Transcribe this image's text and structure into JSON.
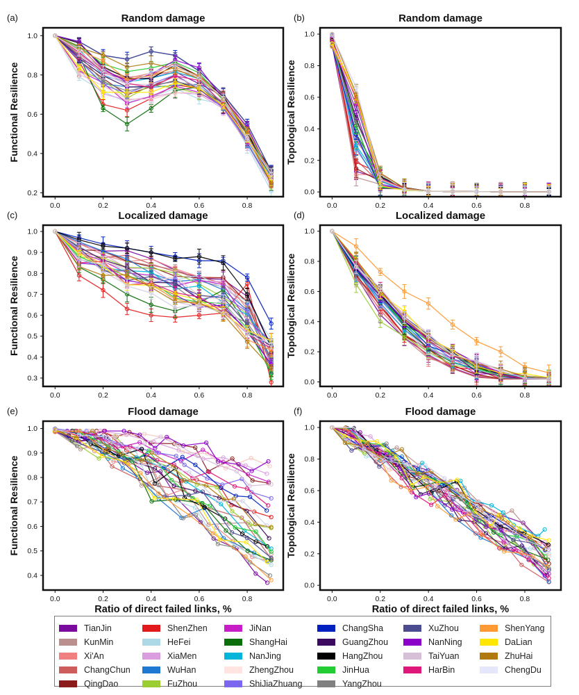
{
  "cities": [
    {
      "name": "TianJin",
      "color": "#7b0a9e"
    },
    {
      "name": "KunMin",
      "color": "#bc8f8f"
    },
    {
      "name": "Xi'An",
      "color": "#f08080"
    },
    {
      "name": "ChangChun",
      "color": "#cd5c5c"
    },
    {
      "name": "QingDao",
      "color": "#8b1a1a"
    },
    {
      "name": "ShenZhen",
      "color": "#e31a1c"
    },
    {
      "name": "HeFei",
      "color": "#add8e6"
    },
    {
      "name": "XiaMen",
      "color": "#da9ee0"
    },
    {
      "name": "WuHan",
      "color": "#1f78d1"
    },
    {
      "name": "FuZhou",
      "color": "#9acd32"
    },
    {
      "name": "JiNan",
      "color": "#c71ec7"
    },
    {
      "name": "ShangHai",
      "color": "#0a6e0a"
    },
    {
      "name": "NanJing",
      "color": "#00b5d8"
    },
    {
      "name": "ZhengZhou",
      "color": "#ffe4e1"
    },
    {
      "name": "ShiJiaZhuang",
      "color": "#7b68ee"
    },
    {
      "name": "ChangSha",
      "color": "#0020c0"
    },
    {
      "name": "GuangZhou",
      "color": "#3b0a5e"
    },
    {
      "name": "HangZhou",
      "color": "#000000"
    },
    {
      "name": "JinHua",
      "color": "#22cc33"
    },
    {
      "name": "YangZhou",
      "color": "#808080"
    },
    {
      "name": "XuZhou",
      "color": "#4b4b8f"
    },
    {
      "name": "NanNing",
      "color": "#8a00c8"
    },
    {
      "name": "TaiYuan",
      "color": "#d8bfd8"
    },
    {
      "name": "HarBin",
      "color": "#e0177a"
    },
    {
      "name": "ShenYang",
      "color": "#ff9933"
    },
    {
      "name": "DaLian",
      "color": "#ffe600"
    },
    {
      "name": "ZhuHai",
      "color": "#b07a10"
    },
    {
      "name": "ChengDu",
      "color": "#e6e6fa"
    }
  ],
  "chart_data": [
    {
      "panel": "(a)",
      "type": "line",
      "title": "Random damage",
      "xlabel": "",
      "ylabel": "Functional Resilience",
      "xlim": [
        -0.05,
        0.95
      ],
      "ylim": [
        0.18,
        1.04
      ],
      "xticks": [
        0.0,
        0.2,
        0.4,
        0.6,
        0.8
      ],
      "yticks": [
        0.2,
        0.4,
        0.6,
        0.8,
        1.0
      ],
      "tick_labels_x": [
        "0.0",
        "0.2",
        "0.4",
        "0.6",
        "0.8"
      ],
      "tick_labels_y": [
        "0.2",
        "0.4",
        "0.6",
        "0.8",
        "1.0"
      ],
      "x": [
        0.0,
        0.1,
        0.2,
        0.3,
        0.4,
        0.5,
        0.6,
        0.7,
        0.8,
        0.9
      ],
      "profile": "random_functional",
      "series_count": 28
    },
    {
      "panel": "(b)",
      "type": "line",
      "title": "Random damage",
      "xlabel": "",
      "ylabel": "Topological Resilience",
      "xlim": [
        -0.05,
        0.95
      ],
      "ylim": [
        -0.03,
        1.04
      ],
      "xticks": [
        0.0,
        0.2,
        0.4,
        0.6,
        0.8
      ],
      "yticks": [
        0.0,
        0.2,
        0.4,
        0.6,
        0.8,
        1.0
      ],
      "tick_labels_x": [
        "0.0",
        "0.2",
        "0.4",
        "0.6",
        "0.8"
      ],
      "tick_labels_y": [
        "0.0",
        "0.2",
        "0.4",
        "0.6",
        "0.8",
        "1.0"
      ],
      "x": [
        0.0,
        0.1,
        0.2,
        0.3,
        0.4,
        0.5,
        0.6,
        0.7,
        0.8,
        0.9
      ],
      "profile": "random_topological",
      "series_count": 28
    },
    {
      "panel": "(c)",
      "type": "line",
      "title": "Localized damage",
      "xlabel": "",
      "ylabel": "Functional Resilience",
      "xlim": [
        -0.05,
        0.95
      ],
      "ylim": [
        0.26,
        1.03
      ],
      "xticks": [
        0.0,
        0.2,
        0.4,
        0.6,
        0.8
      ],
      "yticks": [
        0.3,
        0.4,
        0.5,
        0.6,
        0.7,
        0.8,
        0.9,
        1.0
      ],
      "tick_labels_x": [
        "0.0",
        "0.2",
        "0.4",
        "0.6",
        "0.8"
      ],
      "tick_labels_y": [
        "0.3",
        "0.4",
        "0.5",
        "0.6",
        "0.7",
        "0.8",
        "0.9",
        "1.0"
      ],
      "x": [
        0.0,
        0.1,
        0.2,
        0.3,
        0.4,
        0.5,
        0.6,
        0.7,
        0.8,
        0.9
      ],
      "profile": "localized_functional",
      "series_count": 28
    },
    {
      "panel": "(d)",
      "type": "line",
      "title": "Localized damage",
      "xlabel": "",
      "ylabel": "Topological Resilience",
      "xlim": [
        -0.05,
        0.95
      ],
      "ylim": [
        -0.03,
        1.04
      ],
      "xticks": [
        0.0,
        0.2,
        0.4,
        0.6,
        0.8
      ],
      "yticks": [
        0.0,
        0.2,
        0.4,
        0.6,
        0.8,
        1.0
      ],
      "tick_labels_x": [
        "0.0",
        "0.2",
        "0.4",
        "0.6",
        "0.8"
      ],
      "tick_labels_y": [
        "0.0",
        "0.2",
        "0.4",
        "0.6",
        "0.8",
        "1.0"
      ],
      "x": [
        0.0,
        0.1,
        0.2,
        0.3,
        0.4,
        0.5,
        0.6,
        0.7,
        0.8,
        0.9
      ],
      "profile": "localized_topological",
      "series_count": 28
    },
    {
      "panel": "(e)",
      "type": "line",
      "title": "Flood damage",
      "xlabel": "Ratio of direct failed links, %",
      "ylabel": "Functional Resilience",
      "xlim": [
        -0.05,
        0.95
      ],
      "ylim": [
        0.34,
        1.03
      ],
      "xticks": [
        0.0,
        0.2,
        0.4,
        0.6,
        0.8
      ],
      "yticks": [
        0.4,
        0.5,
        0.6,
        0.7,
        0.8,
        0.9,
        1.0
      ],
      "tick_labels_x": [
        "0.0",
        "0.2",
        "0.4",
        "0.6",
        "0.8"
      ],
      "tick_labels_y": [
        "0.4",
        "0.5",
        "0.6",
        "0.7",
        "0.8",
        "0.9",
        "1.0"
      ],
      "profile": "flood_functional",
      "series_count": 28
    },
    {
      "panel": "(f)",
      "type": "line",
      "title": "Flood damage",
      "xlabel": "Ratio of direct failed links, %",
      "ylabel": "Topological Resilience",
      "xlim": [
        -0.05,
        0.95
      ],
      "ylim": [
        -0.03,
        1.04
      ],
      "xticks": [
        0.0,
        0.2,
        0.4,
        0.6,
        0.8
      ],
      "yticks": [
        0.0,
        0.2,
        0.4,
        0.6,
        0.8,
        1.0
      ],
      "tick_labels_x": [
        "0.0",
        "0.2",
        "0.4",
        "0.6",
        "0.8"
      ],
      "tick_labels_y": [
        "0.0",
        "0.2",
        "0.4",
        "0.6",
        "0.8",
        "1.0"
      ],
      "profile": "flood_topological",
      "series_count": 28
    }
  ]
}
